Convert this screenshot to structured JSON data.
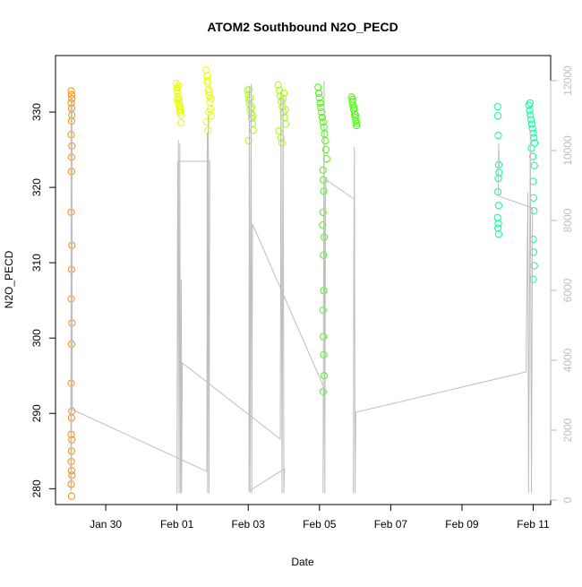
{
  "chart_data": {
    "type": "scatter",
    "title": "ATOM2 Southbound N2O_PECD",
    "x_label": "Date",
    "y_label": "N2O_PECD",
    "xlim": [
      28.59,
      42.49
    ],
    "xticks": [
      {
        "value": 30,
        "label": "Jan 30"
      },
      {
        "value": 32,
        "label": "Feb 01"
      },
      {
        "value": 34,
        "label": "Feb 03"
      },
      {
        "value": 36,
        "label": "Feb 05"
      },
      {
        "value": 38,
        "label": "Feb 07"
      },
      {
        "value": 40,
        "label": "Feb 09"
      },
      {
        "value": 42,
        "label": "Feb 11"
      }
    ],
    "ylim": [
      277.9,
      337.5
    ],
    "yticks": [
      280,
      290,
      300,
      310,
      320,
      330
    ],
    "y2lim": [
      -128,
      12718
    ],
    "y2ticks": [
      0,
      2000,
      4000,
      6000,
      8000,
      10000,
      12000
    ],
    "y2_color": "#bebebe",
    "series": [
      {
        "color": "#ff8c00",
        "x": [
          29.03,
          29.04,
          29.05,
          29.03,
          29.04,
          29.05,
          29.04,
          29.03,
          29.05,
          29.04,
          29.04,
          29.03,
          29.05,
          29.04,
          29.03,
          29.05,
          29.04,
          29.03,
          29.05,
          29.04,
          29.03,
          29.05,
          29.04,
          29.03,
          29.04,
          29.05,
          29.03,
          29.04
        ],
        "values": [
          332.8,
          332.3,
          331.8,
          331.2,
          330.5,
          329.6,
          328.8,
          327.0,
          325.5,
          324.0,
          322.1,
          316.7,
          312.3,
          309.1,
          305.2,
          302.0,
          299.2,
          294.0,
          290.3,
          289.4,
          287.2,
          286.5,
          285.0,
          283.6,
          282.4,
          281.8,
          280.6,
          279.0
        ]
      },
      {
        "color": "#e6ff00",
        "x": [
          31.98,
          32.0,
          32.02,
          32.04,
          32.06,
          32.08,
          32.1,
          32.12,
          32.0,
          32.03,
          32.05,
          32.07,
          32.09,
          32.11,
          32.01,
          32.04,
          32.82,
          32.84,
          32.86,
          32.88,
          32.9,
          32.92,
          32.94,
          32.96,
          32.83,
          32.87,
          32.91,
          32.95,
          32.85,
          32.89
        ],
        "values": [
          333.8,
          333.2,
          332.5,
          331.9,
          331.4,
          330.8,
          330.2,
          329.6,
          332.9,
          332.0,
          331.0,
          330.4,
          329.9,
          328.6,
          331.6,
          333.5,
          335.6,
          334.8,
          333.9,
          333.0,
          332.2,
          331.3,
          330.4,
          329.5,
          328.7,
          327.6,
          332.7,
          331.8,
          334.2,
          330.0
        ]
      },
      {
        "color": "#a6ff00",
        "x": [
          33.98,
          34.0,
          34.02,
          34.04,
          34.06,
          34.08,
          34.1,
          34.12,
          34.14,
          34.01,
          34.05,
          34.09,
          34.13,
          34.03,
          34.84,
          34.87,
          34.9,
          34.93,
          34.96,
          34.99,
          35.02,
          35.05,
          34.86,
          34.92,
          34.98,
          35.04,
          34.95,
          35.0
        ],
        "values": [
          332.9,
          332.3,
          331.6,
          331.0,
          330.4,
          329.8,
          329.2,
          328.5,
          327.6,
          326.2,
          331.9,
          330.7,
          329.5,
          333.0,
          333.6,
          332.9,
          332.1,
          331.4,
          330.7,
          330.0,
          329.3,
          328.4,
          327.5,
          326.6,
          331.8,
          330.3,
          325.9,
          332.5
        ]
      },
      {
        "color": "#40ff00",
        "x": [
          35.96,
          35.98,
          36.0,
          36.02,
          36.04,
          36.06,
          36.08,
          36.1,
          36.12,
          36.14,
          36.16,
          36.18,
          36.2,
          36.1,
          36.11,
          36.12,
          36.1,
          36.09,
          36.13,
          36.11,
          36.12,
          36.1,
          36.11,
          36.12,
          36.13,
          36.1,
          36.9,
          36.92,
          36.94,
          36.96,
          36.98,
          37.0,
          37.02,
          37.04,
          36.93,
          36.97,
          37.01,
          37.05
        ],
        "values": [
          333.3,
          332.5,
          331.9,
          331.2,
          330.6,
          330.0,
          329.3,
          328.7,
          328.0,
          327.1,
          326.2,
          325.0,
          323.8,
          322.3,
          321.0,
          319.5,
          316.7,
          315.0,
          313.4,
          311.0,
          306.3,
          303.7,
          300.2,
          297.8,
          295.0,
          292.9,
          332.0,
          331.4,
          330.9,
          330.3,
          329.8,
          329.3,
          328.8,
          328.2,
          331.7,
          330.6,
          329.6,
          328.5
        ]
      },
      {
        "color": "#00ff99",
        "x": [
          41.0,
          41.01,
          41.02,
          41.03,
          41.04,
          41.02,
          41.01,
          41.03,
          41.0,
          41.02,
          41.01,
          41.03,
          41.88,
          41.9,
          41.92,
          41.94,
          41.96,
          41.98,
          42.0,
          42.02,
          42.04,
          41.91,
          41.95,
          41.99,
          42.03,
          42.0,
          42.01,
          42.02,
          42.0,
          42.01,
          42.03,
          42.0
        ],
        "values": [
          330.7,
          329.5,
          326.9,
          323.0,
          322.0,
          321.2,
          319.4,
          317.6,
          316.0,
          315.2,
          314.6,
          313.8,
          330.9,
          330.2,
          329.6,
          329.0,
          328.4,
          327.8,
          327.2,
          326.6,
          325.9,
          331.2,
          325.2,
          324.1,
          322.9,
          320.8,
          318.6,
          316.9,
          313.1,
          311.4,
          309.6,
          307.8
        ]
      },
      {
        "color": "#bebebe",
        "type": "line",
        "axis": "y2",
        "x": [
          29.02,
          29.03,
          29.04,
          29.05,
          29.06,
          32.84,
          32.85,
          32.86,
          32.88,
          32.9,
          32.92,
          32.02,
          32.0,
          32.04,
          32.06,
          32.08,
          32.1,
          32.12,
          32.13,
          32.15,
          34.9,
          34.92,
          34.95,
          34.98,
          35.0,
          35.02,
          34.02,
          34.03,
          34.05,
          34.08,
          34.1,
          34.12,
          36.12,
          36.1,
          36.13,
          36.15,
          36.17,
          36.97,
          36.95,
          36.98,
          37.0,
          37.02,
          41.8,
          41.85,
          41.87,
          41.92,
          41.95,
          41.98,
          41.02,
          41.03,
          41.05
        ],
        "values": [
          180,
          11700,
          300,
          11500,
          2590,
          820,
          10500,
          200,
          11000,
          200,
          9692,
          9692,
          200,
          10300,
          200,
          10200,
          200,
          6300,
          200,
          3923,
          1744,
          11700,
          200,
          11500,
          200,
          897,
          256,
          11800,
          200,
          11900,
          200,
          7897,
          3231,
          200,
          12000,
          200,
          9179,
          8615,
          200,
          10100,
          200,
          2513,
          3667,
          8800,
          200,
          10600,
          200,
          8359,
          8700,
          10200,
          9500
        ]
      }
    ]
  }
}
